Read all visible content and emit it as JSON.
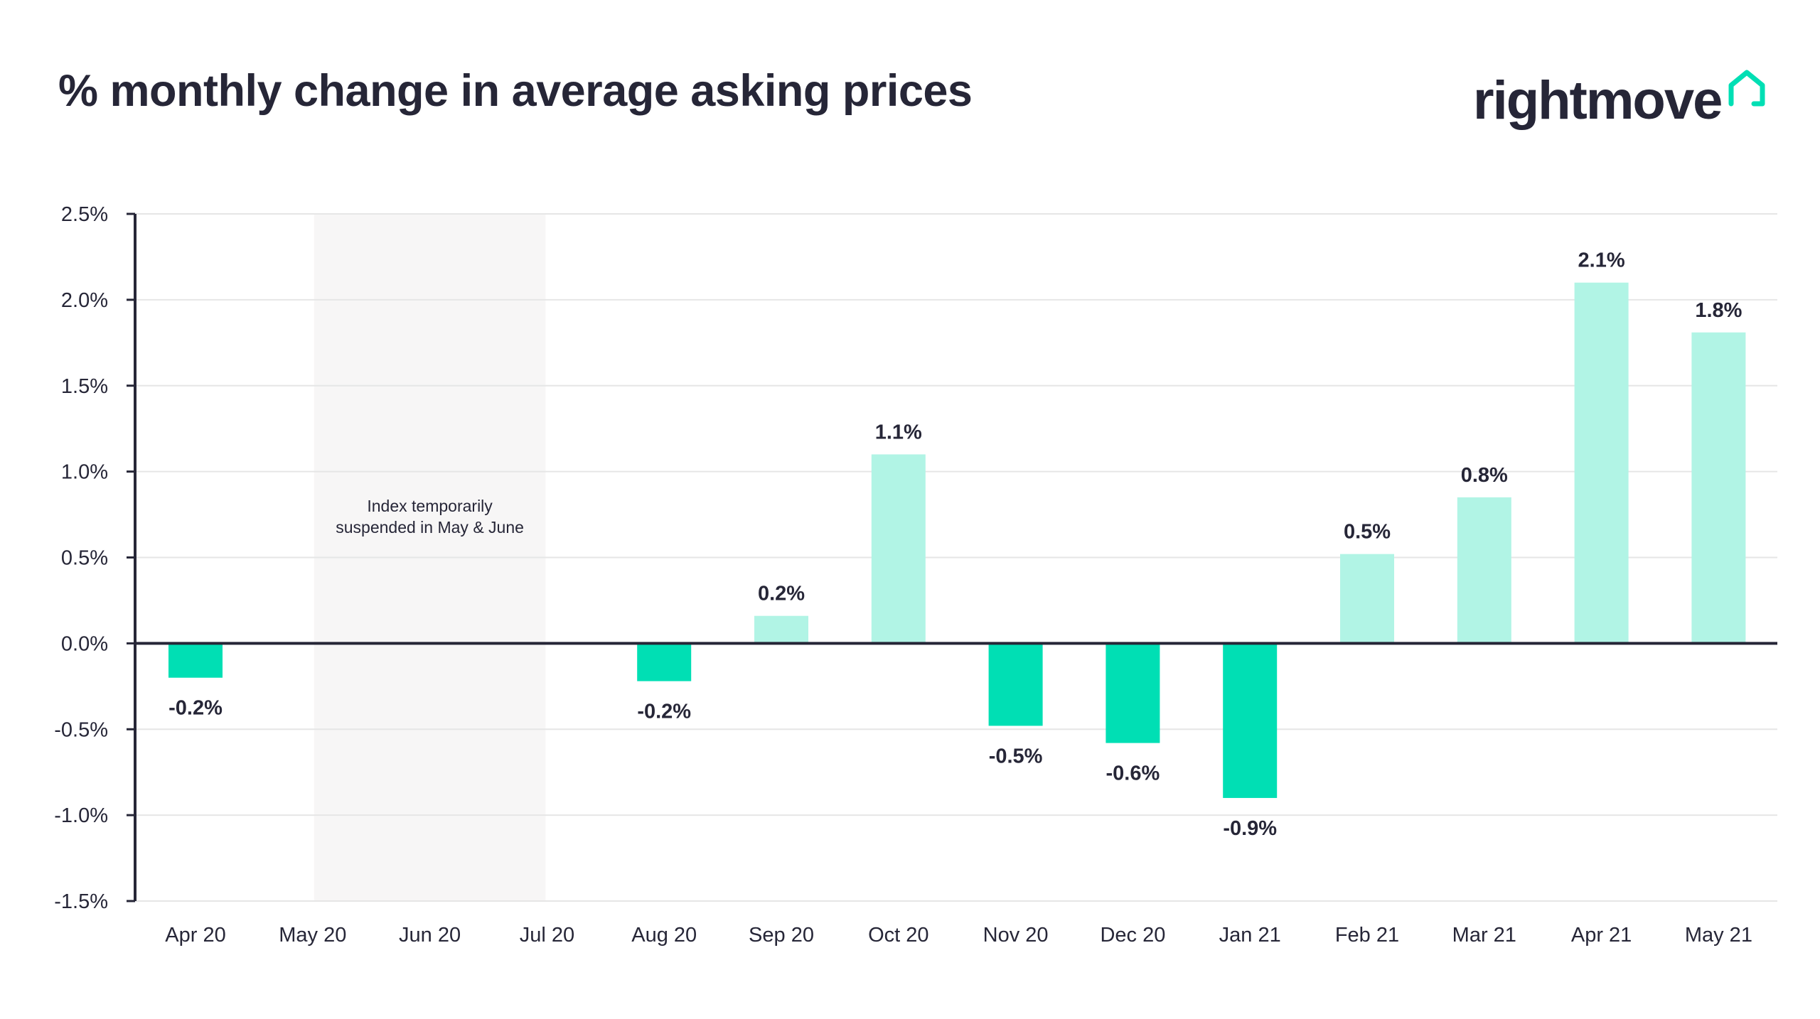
{
  "header": {
    "title": "% monthly change in average asking prices",
    "logo_text": "rightmove",
    "logo_icon": "house-outline-icon"
  },
  "colors": {
    "negative": "#00dfb4",
    "positive": "#b1f4e5",
    "text": "#262637",
    "axis": "#262637",
    "grid": "#e6e6e6",
    "shade": "#f7f6f6",
    "brand_accent": "#00dfb4"
  },
  "chart_data": {
    "type": "bar",
    "title": "% monthly change in average asking prices",
    "xlabel": "",
    "ylabel": "",
    "categories": [
      "Apr 20",
      "May 20",
      "Jun 20",
      "Jul 20",
      "Aug 20",
      "Sep 20",
      "Oct 20",
      "Nov 20",
      "Dec 20",
      "Jan 21",
      "Feb 21",
      "Mar 21",
      "Apr 21",
      "May 21"
    ],
    "values": [
      -0.2,
      null,
      null,
      null,
      -0.22,
      0.16,
      1.1,
      -0.48,
      -0.58,
      -0.9,
      0.52,
      0.85,
      2.1,
      1.81
    ],
    "data_labels": [
      "-0.2%",
      "",
      "",
      "",
      "-0.2%",
      "0.2%",
      "1.1%",
      "-0.5%",
      "-0.6%",
      "-0.9%",
      "0.5%",
      "0.8%",
      "2.1%",
      "1.8%"
    ],
    "ylim": [
      -1.5,
      2.5
    ],
    "yticks": [
      2.5,
      2.0,
      1.5,
      1.0,
      0.5,
      0.0,
      -0.5,
      -1.0,
      -1.5
    ],
    "ytick_labels": [
      "2.5%",
      "2.0%",
      "1.5%",
      "1.0%",
      "0.5%",
      "0.0%",
      "-0.5%",
      "-1.0%",
      "-1.5%"
    ],
    "grid": true,
    "shaded_region": {
      "from": "May 20",
      "to": "Jul 20",
      "note_lines": [
        "Index temporarily",
        "suspended in May & June"
      ]
    }
  }
}
